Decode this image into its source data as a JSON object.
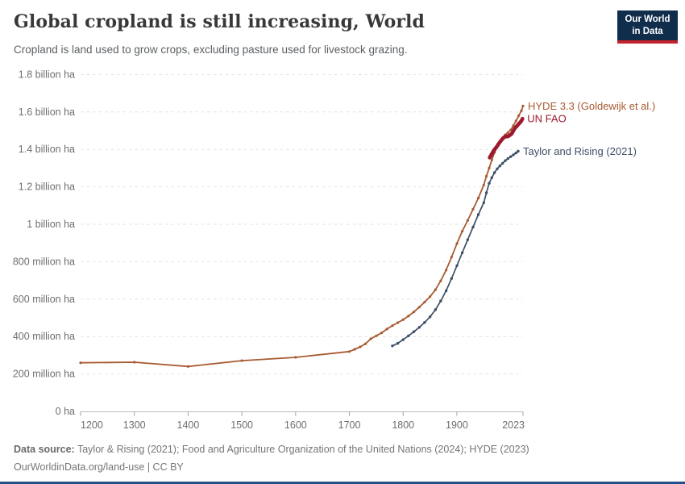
{
  "header": {
    "title": "Global cropland is still increasing, World",
    "subtitle": "Cropland is land used to grow crops, excluding pasture used for livestock grazing.",
    "logo": {
      "line1": "Our World",
      "line2": "in Data",
      "bg_color": "#102D4C",
      "bar_color": "#C4222C"
    }
  },
  "footer": {
    "source_label": "Data source:",
    "source_text": " Taylor & Rising (2021); Food and Agriculture Organization of the United Nations (2024); HYDE (2023)",
    "license_line": "OurWorldinData.org/land-use | CC BY"
  },
  "accent": {
    "bottom_bar_color": "#25518B",
    "grid_color": "#E2E2E2",
    "axis_line_color": "#BCBCBC",
    "tick_color": "#A0A0A0",
    "tick_label_color": "#6E6E6E"
  },
  "chart_data": {
    "type": "line",
    "title": "Global cropland is still increasing, World",
    "xlabel": "",
    "ylabel": "",
    "unit": "billion ha",
    "xlim": [
      1200,
      2023
    ],
    "ylim": [
      0,
      1.8
    ],
    "grid": "horizontal dashed",
    "legend_position": "end-of-line labels, right side",
    "x_ticks": [
      {
        "value": 1200,
        "label": "1200"
      },
      {
        "value": 1300,
        "label": "1300"
      },
      {
        "value": 1400,
        "label": "1400"
      },
      {
        "value": 1500,
        "label": "1500"
      },
      {
        "value": 1600,
        "label": "1600"
      },
      {
        "value": 1700,
        "label": "1700"
      },
      {
        "value": 1800,
        "label": "1800"
      },
      {
        "value": 1900,
        "label": "1900"
      },
      {
        "value": 2023,
        "label": "2023"
      }
    ],
    "y_ticks": [
      {
        "value": 0,
        "label": "0 ha",
        "grid": false
      },
      {
        "value": 0.2,
        "label": "200 million ha",
        "grid": true
      },
      {
        "value": 0.4,
        "label": "400 million ha",
        "grid": true
      },
      {
        "value": 0.6,
        "label": "600 million ha",
        "grid": true
      },
      {
        "value": 0.8,
        "label": "800 million ha",
        "grid": true
      },
      {
        "value": 1,
        "label": "1 billion ha",
        "grid": true
      },
      {
        "value": 1.2,
        "label": "1.2 billion ha",
        "grid": true
      },
      {
        "value": 1.4,
        "label": "1.4 billion ha",
        "grid": true
      },
      {
        "value": 1.6,
        "label": "1.6 billion ha",
        "grid": true
      },
      {
        "value": 1.8,
        "label": "1.8 billion ha",
        "grid": true
      }
    ],
    "series": [
      {
        "id": "hyde",
        "name": "HYDE 3.3 (Goldewijk et al.)",
        "color": "#A85B32",
        "line_width": 1.8,
        "marker_radius": 1.6,
        "points": [
          [
            1200,
            0.26
          ],
          [
            1300,
            0.263
          ],
          [
            1400,
            0.24
          ],
          [
            1500,
            0.271
          ],
          [
            1600,
            0.289
          ],
          [
            1700,
            0.32
          ],
          [
            1710,
            0.332
          ],
          [
            1720,
            0.345
          ],
          [
            1730,
            0.361
          ],
          [
            1740,
            0.388
          ],
          [
            1750,
            0.404
          ],
          [
            1760,
            0.42
          ],
          [
            1770,
            0.44
          ],
          [
            1780,
            0.458
          ],
          [
            1790,
            0.474
          ],
          [
            1800,
            0.49
          ],
          [
            1810,
            0.51
          ],
          [
            1820,
            0.532
          ],
          [
            1830,
            0.557
          ],
          [
            1840,
            0.584
          ],
          [
            1850,
            0.613
          ],
          [
            1860,
            0.65
          ],
          [
            1870,
            0.698
          ],
          [
            1880,
            0.755
          ],
          [
            1890,
            0.824
          ],
          [
            1900,
            0.897
          ],
          [
            1910,
            0.963
          ],
          [
            1920,
            1.02
          ],
          [
            1930,
            1.08
          ],
          [
            1940,
            1.14
          ],
          [
            1950,
            1.21
          ],
          [
            1955,
            1.257
          ],
          [
            1960,
            1.3
          ],
          [
            1965,
            1.344
          ],
          [
            1970,
            1.383
          ],
          [
            1975,
            1.415
          ],
          [
            1980,
            1.441
          ],
          [
            1985,
            1.459
          ],
          [
            1990,
            1.478
          ],
          [
            1995,
            1.49
          ],
          [
            2000,
            1.504
          ],
          [
            2005,
            1.527
          ],
          [
            2010,
            1.552
          ],
          [
            2015,
            1.58
          ],
          [
            2020,
            1.607
          ],
          [
            2023,
            1.632
          ]
        ]
      },
      {
        "id": "taylor",
        "name": "Taylor and Rising (2021)",
        "color": "#3D4F66",
        "line_width": 1.7,
        "marker_radius": 1.7,
        "points": [
          [
            1780,
            0.35
          ],
          [
            1790,
            0.364
          ],
          [
            1800,
            0.383
          ],
          [
            1810,
            0.404
          ],
          [
            1820,
            0.426
          ],
          [
            1830,
            0.449
          ],
          [
            1840,
            0.475
          ],
          [
            1850,
            0.505
          ],
          [
            1860,
            0.543
          ],
          [
            1870,
            0.59
          ],
          [
            1880,
            0.645
          ],
          [
            1890,
            0.71
          ],
          [
            1900,
            0.779
          ],
          [
            1910,
            0.848
          ],
          [
            1920,
            0.917
          ],
          [
            1930,
            0.985
          ],
          [
            1940,
            1.052
          ],
          [
            1950,
            1.115
          ],
          [
            1955,
            1.168
          ],
          [
            1960,
            1.219
          ],
          [
            1965,
            1.249
          ],
          [
            1970,
            1.276
          ],
          [
            1975,
            1.296
          ],
          [
            1980,
            1.312
          ],
          [
            1985,
            1.326
          ],
          [
            1990,
            1.34
          ],
          [
            1995,
            1.351
          ],
          [
            2000,
            1.361
          ],
          [
            2005,
            1.371
          ],
          [
            2010,
            1.381
          ],
          [
            2014,
            1.39
          ]
        ]
      },
      {
        "id": "fao",
        "name": "UN FAO",
        "color": "#9C1A2E",
        "line_width": 2.6,
        "marker_radius": 2.3,
        "points": [
          [
            1961,
            1.356
          ],
          [
            1962,
            1.361
          ],
          [
            1963,
            1.366
          ],
          [
            1964,
            1.371
          ],
          [
            1965,
            1.376
          ],
          [
            1966,
            1.381
          ],
          [
            1967,
            1.386
          ],
          [
            1968,
            1.391
          ],
          [
            1969,
            1.395
          ],
          [
            1970,
            1.399
          ],
          [
            1971,
            1.403
          ],
          [
            1972,
            1.406
          ],
          [
            1973,
            1.41
          ],
          [
            1974,
            1.414
          ],
          [
            1975,
            1.418
          ],
          [
            1976,
            1.422
          ],
          [
            1977,
            1.427
          ],
          [
            1978,
            1.431
          ],
          [
            1979,
            1.435
          ],
          [
            1980,
            1.439
          ],
          [
            1981,
            1.443
          ],
          [
            1982,
            1.446
          ],
          [
            1983,
            1.45
          ],
          [
            1984,
            1.454
          ],
          [
            1985,
            1.457
          ],
          [
            1986,
            1.46
          ],
          [
            1987,
            1.462
          ],
          [
            1988,
            1.465
          ],
          [
            1989,
            1.467
          ],
          [
            1990,
            1.469
          ],
          [
            1991,
            1.47
          ],
          [
            1992,
            1.47
          ],
          [
            1993,
            1.469
          ],
          [
            1994,
            1.469
          ],
          [
            1995,
            1.47
          ],
          [
            1996,
            1.471
          ],
          [
            1997,
            1.473
          ],
          [
            1998,
            1.475
          ],
          [
            1999,
            1.477
          ],
          [
            2000,
            1.479
          ],
          [
            2001,
            1.481
          ],
          [
            2002,
            1.484
          ],
          [
            2003,
            1.489
          ],
          [
            2004,
            1.494
          ],
          [
            2005,
            1.499
          ],
          [
            2006,
            1.504
          ],
          [
            2007,
            1.509
          ],
          [
            2008,
            1.514
          ],
          [
            2009,
            1.517
          ],
          [
            2010,
            1.52
          ],
          [
            2011,
            1.523
          ],
          [
            2012,
            1.526
          ],
          [
            2013,
            1.529
          ],
          [
            2014,
            1.533
          ],
          [
            2015,
            1.536
          ],
          [
            2016,
            1.539
          ],
          [
            2017,
            1.542
          ],
          [
            2018,
            1.545
          ],
          [
            2019,
            1.549
          ],
          [
            2020,
            1.553
          ],
          [
            2021,
            1.558
          ],
          [
            2022,
            1.564
          ]
        ]
      }
    ]
  }
}
